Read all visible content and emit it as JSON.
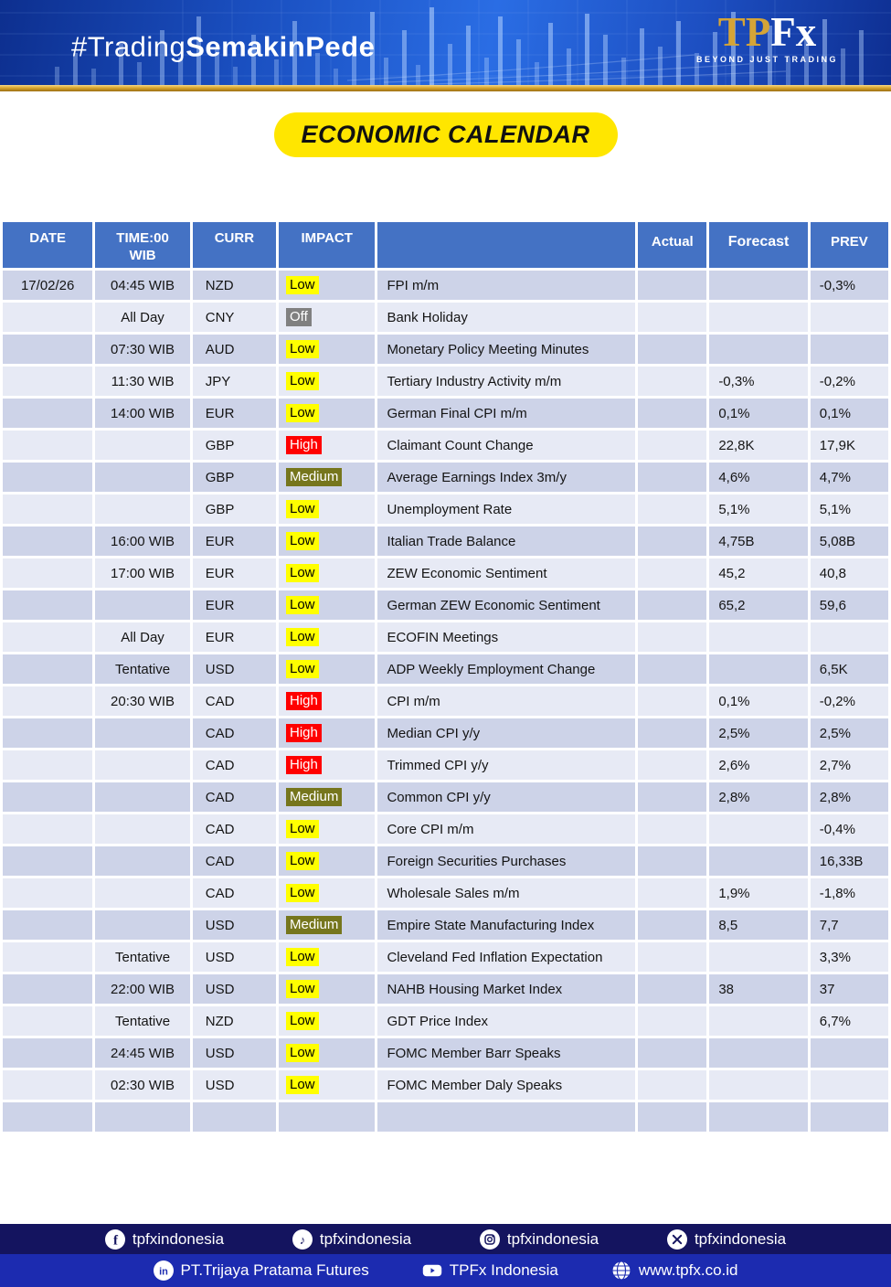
{
  "header": {
    "hashtag": {
      "prefix": "#Trading",
      "bold": "SemakinPede"
    },
    "logo": {
      "tp": "TP",
      "fx": "Fx",
      "tagline": "BEYOND JUST TRADING"
    }
  },
  "title_badge": "ECONOMIC CALENDAR",
  "colors": {
    "header_blue": "#4472c4",
    "row_odd": "#cdd3e8",
    "row_even": "#e7eaf5",
    "badge_yellow": "#ffe600",
    "gold_bar": "#d9a62e",
    "footer_top": "#14145f",
    "footer_bottom": "#1c2bb0"
  },
  "table": {
    "columns": [
      "DATE",
      "TIME:00\nWIB",
      "CURR",
      "IMPACT",
      "",
      "Actual",
      "Forecast",
      "PREV"
    ],
    "impact_styles": {
      "Low": {
        "bg": "#ffff00",
        "fg": "#000000"
      },
      "Medium": {
        "bg": "#76761d",
        "fg": "#ffffff"
      },
      "High": {
        "bg": "#ff0000",
        "fg": "#ffffff"
      },
      "Off": {
        "bg": "#808080",
        "fg": "#ffffff"
      }
    },
    "rows": [
      {
        "date": "17/02/26",
        "time": "04:45 WIB",
        "curr": "NZD",
        "impact": "Low",
        "event": "FPI m/m",
        "actual": "",
        "forecast": "",
        "prev": "-0,3%"
      },
      {
        "date": "",
        "time": "All Day",
        "curr": "CNY",
        "impact": "Off",
        "event": "Bank Holiday",
        "actual": "",
        "forecast": "",
        "prev": ""
      },
      {
        "date": "",
        "time": "07:30 WIB",
        "curr": "AUD",
        "impact": "Low",
        "event": "Monetary Policy Meeting Minutes",
        "actual": "",
        "forecast": "",
        "prev": ""
      },
      {
        "date": "",
        "time": "11:30 WIB",
        "curr": "JPY",
        "impact": "Low",
        "event": "Tertiary Industry Activity m/m",
        "actual": "",
        "forecast": "-0,3%",
        "prev": "-0,2%"
      },
      {
        "date": "",
        "time": "14:00 WIB",
        "curr": "EUR",
        "impact": "Low",
        "event": "German Final CPI m/m",
        "actual": "",
        "forecast": "0,1%",
        "prev": "0,1%"
      },
      {
        "date": "",
        "time": "",
        "curr": "GBP",
        "impact": "High",
        "event": "Claimant Count Change",
        "actual": "",
        "forecast": "22,8K",
        "prev": "17,9K"
      },
      {
        "date": "",
        "time": "",
        "curr": "GBP",
        "impact": "Medium",
        "event": "Average Earnings Index 3m/y",
        "actual": "",
        "forecast": "4,6%",
        "prev": "4,7%"
      },
      {
        "date": "",
        "time": "",
        "curr": "GBP",
        "impact": "Low",
        "event": "Unemployment Rate",
        "actual": "",
        "forecast": "5,1%",
        "prev": "5,1%"
      },
      {
        "date": "",
        "time": "16:00 WIB",
        "curr": "EUR",
        "impact": "Low",
        "event": "Italian Trade Balance",
        "actual": "",
        "forecast": "4,75B",
        "prev": "5,08B"
      },
      {
        "date": "",
        "time": "17:00 WIB",
        "curr": "EUR",
        "impact": "Low",
        "event": "ZEW Economic Sentiment",
        "actual": "",
        "forecast": "45,2",
        "prev": "40,8"
      },
      {
        "date": "",
        "time": "",
        "curr": "EUR",
        "impact": "Low",
        "event": "German ZEW Economic Sentiment",
        "actual": "",
        "forecast": "65,2",
        "prev": "59,6"
      },
      {
        "date": "",
        "time": "All Day",
        "curr": "EUR",
        "impact": "Low",
        "event": "ECOFIN Meetings",
        "actual": "",
        "forecast": "",
        "prev": ""
      },
      {
        "date": "",
        "time": "Tentative",
        "curr": "USD",
        "impact": "Low",
        "event": "ADP Weekly Employment Change",
        "actual": "",
        "forecast": "",
        "prev": "6,5K"
      },
      {
        "date": "",
        "time": "20:30 WIB",
        "curr": "CAD",
        "impact": "High",
        "event": "CPI m/m",
        "actual": "",
        "forecast": "0,1%",
        "prev": "-0,2%"
      },
      {
        "date": "",
        "time": "",
        "curr": "CAD",
        "impact": "High",
        "event": "Median CPI y/y",
        "actual": "",
        "forecast": "2,5%",
        "prev": "2,5%"
      },
      {
        "date": "",
        "time": "",
        "curr": "CAD",
        "impact": "High",
        "event": "Trimmed CPI y/y",
        "actual": "",
        "forecast": "2,6%",
        "prev": "2,7%"
      },
      {
        "date": "",
        "time": "",
        "curr": "CAD",
        "impact": "Medium",
        "event": "Common CPI y/y",
        "actual": "",
        "forecast": "2,8%",
        "prev": "2,8%"
      },
      {
        "date": "",
        "time": "",
        "curr": "CAD",
        "impact": "Low",
        "event": "Core CPI m/m",
        "actual": "",
        "forecast": "",
        "prev": "-0,4%"
      },
      {
        "date": "",
        "time": "",
        "curr": "CAD",
        "impact": "Low",
        "event": "Foreign Securities Purchases",
        "actual": "",
        "forecast": "",
        "prev": "16,33B"
      },
      {
        "date": "",
        "time": "",
        "curr": "CAD",
        "impact": "Low",
        "event": "Wholesale Sales m/m",
        "actual": "",
        "forecast": "1,9%",
        "prev": "-1,8%"
      },
      {
        "date": "",
        "time": "",
        "curr": "USD",
        "impact": "Medium",
        "event": "Empire State Manufacturing Index",
        "actual": "",
        "forecast": "8,5",
        "prev": "7,7"
      },
      {
        "date": "",
        "time": "Tentative",
        "curr": "USD",
        "impact": "Low",
        "event": "Cleveland Fed Inflation Expectation",
        "actual": "",
        "forecast": "",
        "prev": "3,3%"
      },
      {
        "date": "",
        "time": "22:00 WIB",
        "curr": "USD",
        "impact": "Low",
        "event": "NAHB Housing Market Index",
        "actual": "",
        "forecast": "38",
        "prev": "37"
      },
      {
        "date": "",
        "time": "Tentative",
        "curr": "NZD",
        "impact": "Low",
        "event": "GDT Price Index",
        "actual": "",
        "forecast": "",
        "prev": "6,7%"
      },
      {
        "date": "",
        "time": "24:45 WIB",
        "curr": "USD",
        "impact": "Low",
        "event": "FOMC Member Barr Speaks",
        "actual": "",
        "forecast": "",
        "prev": ""
      },
      {
        "date": "",
        "time": "02:30 WIB",
        "curr": "USD",
        "impact": "Low",
        "event": "FOMC Member Daly Speaks",
        "actual": "",
        "forecast": "",
        "prev": ""
      },
      {
        "date": "",
        "time": "",
        "curr": "",
        "impact": "",
        "event": "",
        "actual": "",
        "forecast": "",
        "prev": ""
      }
    ]
  },
  "footer": {
    "social_row": [
      {
        "icon": "facebook-icon",
        "label": "tpfxindonesia"
      },
      {
        "icon": "tiktok-icon",
        "label": "tpfxindonesia"
      },
      {
        "icon": "instagram-icon",
        "label": "tpfxindonesia"
      },
      {
        "icon": "x-icon",
        "label": "tpfxindonesia"
      }
    ],
    "company_row": [
      {
        "icon": "linkedin-icon",
        "label": "PT.Trijaya Pratama Futures"
      },
      {
        "icon": "youtube-icon",
        "label": "TPFx Indonesia"
      },
      {
        "icon": "globe-icon",
        "label": "www.tpfx.co.id"
      }
    ]
  }
}
